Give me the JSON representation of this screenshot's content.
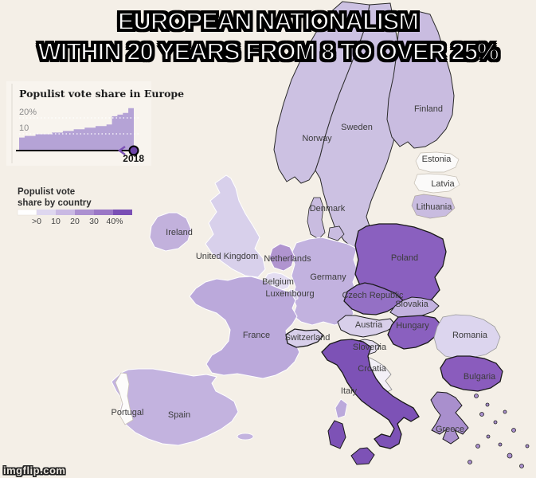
{
  "meme": {
    "caption_line1": "EUROPEAN NATIONALISM",
    "caption_line2": "WITHIN 20 YEARS FROM 8 TO OVER 25%",
    "watermark": "imgflip.com"
  },
  "colors": {
    "background": "#f4efe7",
    "area_fill": "#b5a3d6",
    "axis": "#000000",
    "end_dot": "#6d44a8",
    "arrow": "#7d52b6"
  },
  "chart_data": {
    "type": "area",
    "title": "Populist vote share in Europe",
    "y_tick_labels": [
      "20%",
      "10"
    ],
    "y_tick_values": [
      20,
      10
    ],
    "x_tick_labels": [
      "2018"
    ],
    "values": [
      8,
      9,
      9,
      10,
      10,
      10,
      11,
      11,
      12,
      12,
      13,
      13,
      14,
      14,
      15,
      15,
      16,
      21,
      22,
      23,
      26
    ],
    "ylim": [
      0,
      30
    ],
    "grid": "dotted",
    "end_label": "2018"
  },
  "legend": {
    "title_line1": "Populist vote",
    "title_line2": "share by country",
    "tick_labels": [
      ">0",
      "10",
      "20",
      "30",
      "40%"
    ],
    "colors": [
      "#ffffff",
      "#ded7ef",
      "#c9b9e3",
      "#ab90d0",
      "#9a77c6",
      "#7a4fb5"
    ]
  },
  "map": {
    "labels": {
      "norway": "Norway",
      "sweden": "Sweden",
      "finland": "Finland",
      "denmark": "Denmark",
      "estonia": "Estonia",
      "latvia": "Latvia",
      "lithuania": "Lithuania",
      "ireland": "Ireland",
      "uk": "United Kingdom",
      "netherlands": "Netherlands",
      "belgium": "Belgium",
      "luxembourg": "Luxembourg",
      "germany": "Germany",
      "poland": "Poland",
      "czech": "Czech Republic",
      "slovakia": "Slovakia",
      "austria": "Austria",
      "hungary": "Hungary",
      "switzerland": "Switzerland",
      "slovenia": "Slovenia",
      "croatia": "Croatia",
      "romania": "Romania",
      "bulgaria": "Bulgaria",
      "greece": "Greece",
      "italy": "Italy",
      "france": "France",
      "spain": "Spain",
      "portugal": "Portugal"
    },
    "fills": {
      "norway": "#ccc1e2",
      "sweden": "#ccc1e2",
      "finland": "#c9bce0",
      "denmark": "#c9bce0",
      "estonia": "#fbfaf9",
      "latvia": "#fbfaf9",
      "lithuania": "#c9bce0",
      "ireland": "#c2b1dc",
      "uk": "#d8d0eb",
      "netherlands": "#b094cf",
      "belgium": "#e3ddf1",
      "luxembourg": "#d8d0eb",
      "germany": "#c2b2df",
      "poland": "#8a60bf",
      "czech": "#9470c5",
      "slovakia": "#c3b3df",
      "austria": "#d8cfea",
      "hungary": "#8a60bf",
      "switzerland": "#d8cfea",
      "slovenia": "#e4def0",
      "croatia": "#f3f0f7",
      "romania": "#dcd5ee",
      "bulgaria": "#8a5cbd",
      "greece": "#a98fcd",
      "italy": "#7d52b6",
      "france": "#bba9db",
      "spain": "#c3b3df",
      "portugal": "#fdfcfb"
    }
  }
}
